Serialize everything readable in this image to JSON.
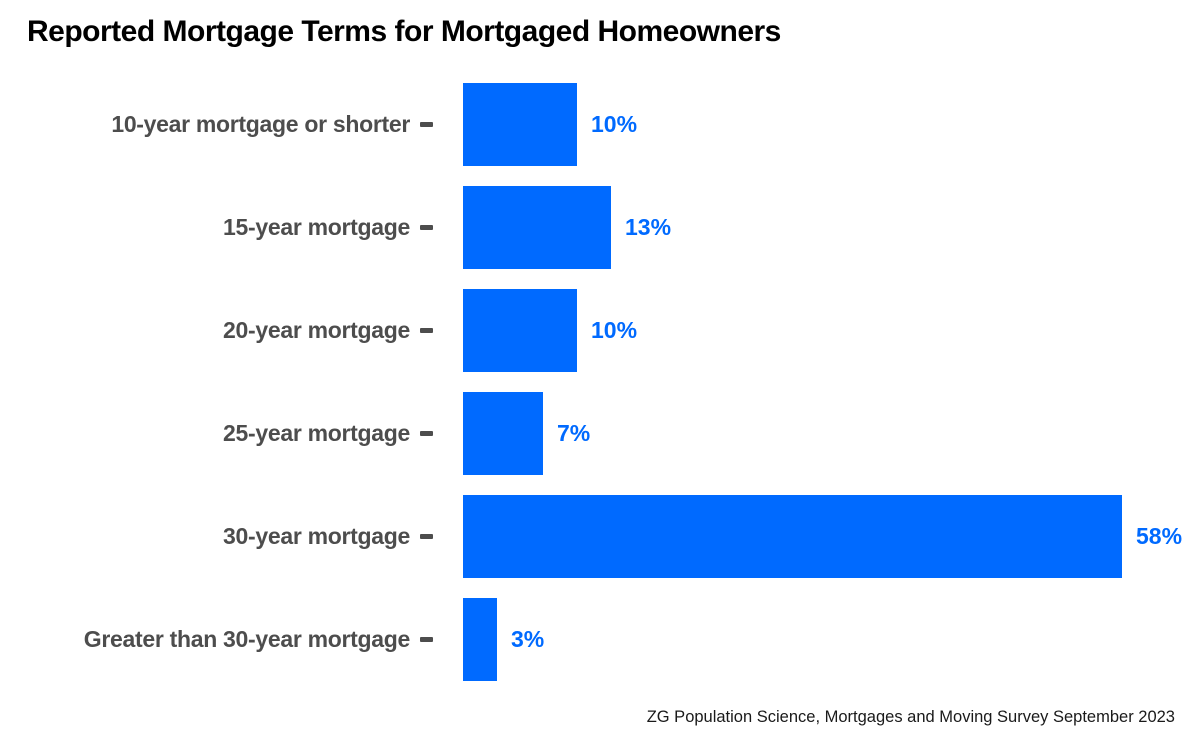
{
  "title": "Reported Mortgage Terms for Mortgaged Homeowners",
  "source": "ZG Population Science, Mortgages and Moving Survey September 2023",
  "colors": {
    "bar": "#006aff",
    "value_label": "#006aff",
    "category_label": "#4d4d4d",
    "title": "#000000",
    "background": "#ffffff"
  },
  "chart_data": {
    "type": "bar",
    "orientation": "horizontal",
    "title": "Reported Mortgage Terms for Mortgaged Homeowners",
    "xlabel": "",
    "ylabel": "",
    "categories": [
      "10-year mortgage or shorter",
      "15-year mortgage",
      "20-year mortgage",
      "25-year mortgage",
      "30-year mortgage",
      "Greater than 30-year mortgage"
    ],
    "values": [
      10,
      13,
      10,
      7,
      58,
      3
    ],
    "value_labels": [
      "10%",
      "13%",
      "10%",
      "7%",
      "58%",
      "3%"
    ],
    "unit": "percent",
    "xlim": [
      0,
      60
    ],
    "grid": false,
    "legend": false,
    "data_labels_position": "end-of-bar",
    "source": "ZG Population Science, Mortgages and Moving Survey September 2023"
  }
}
